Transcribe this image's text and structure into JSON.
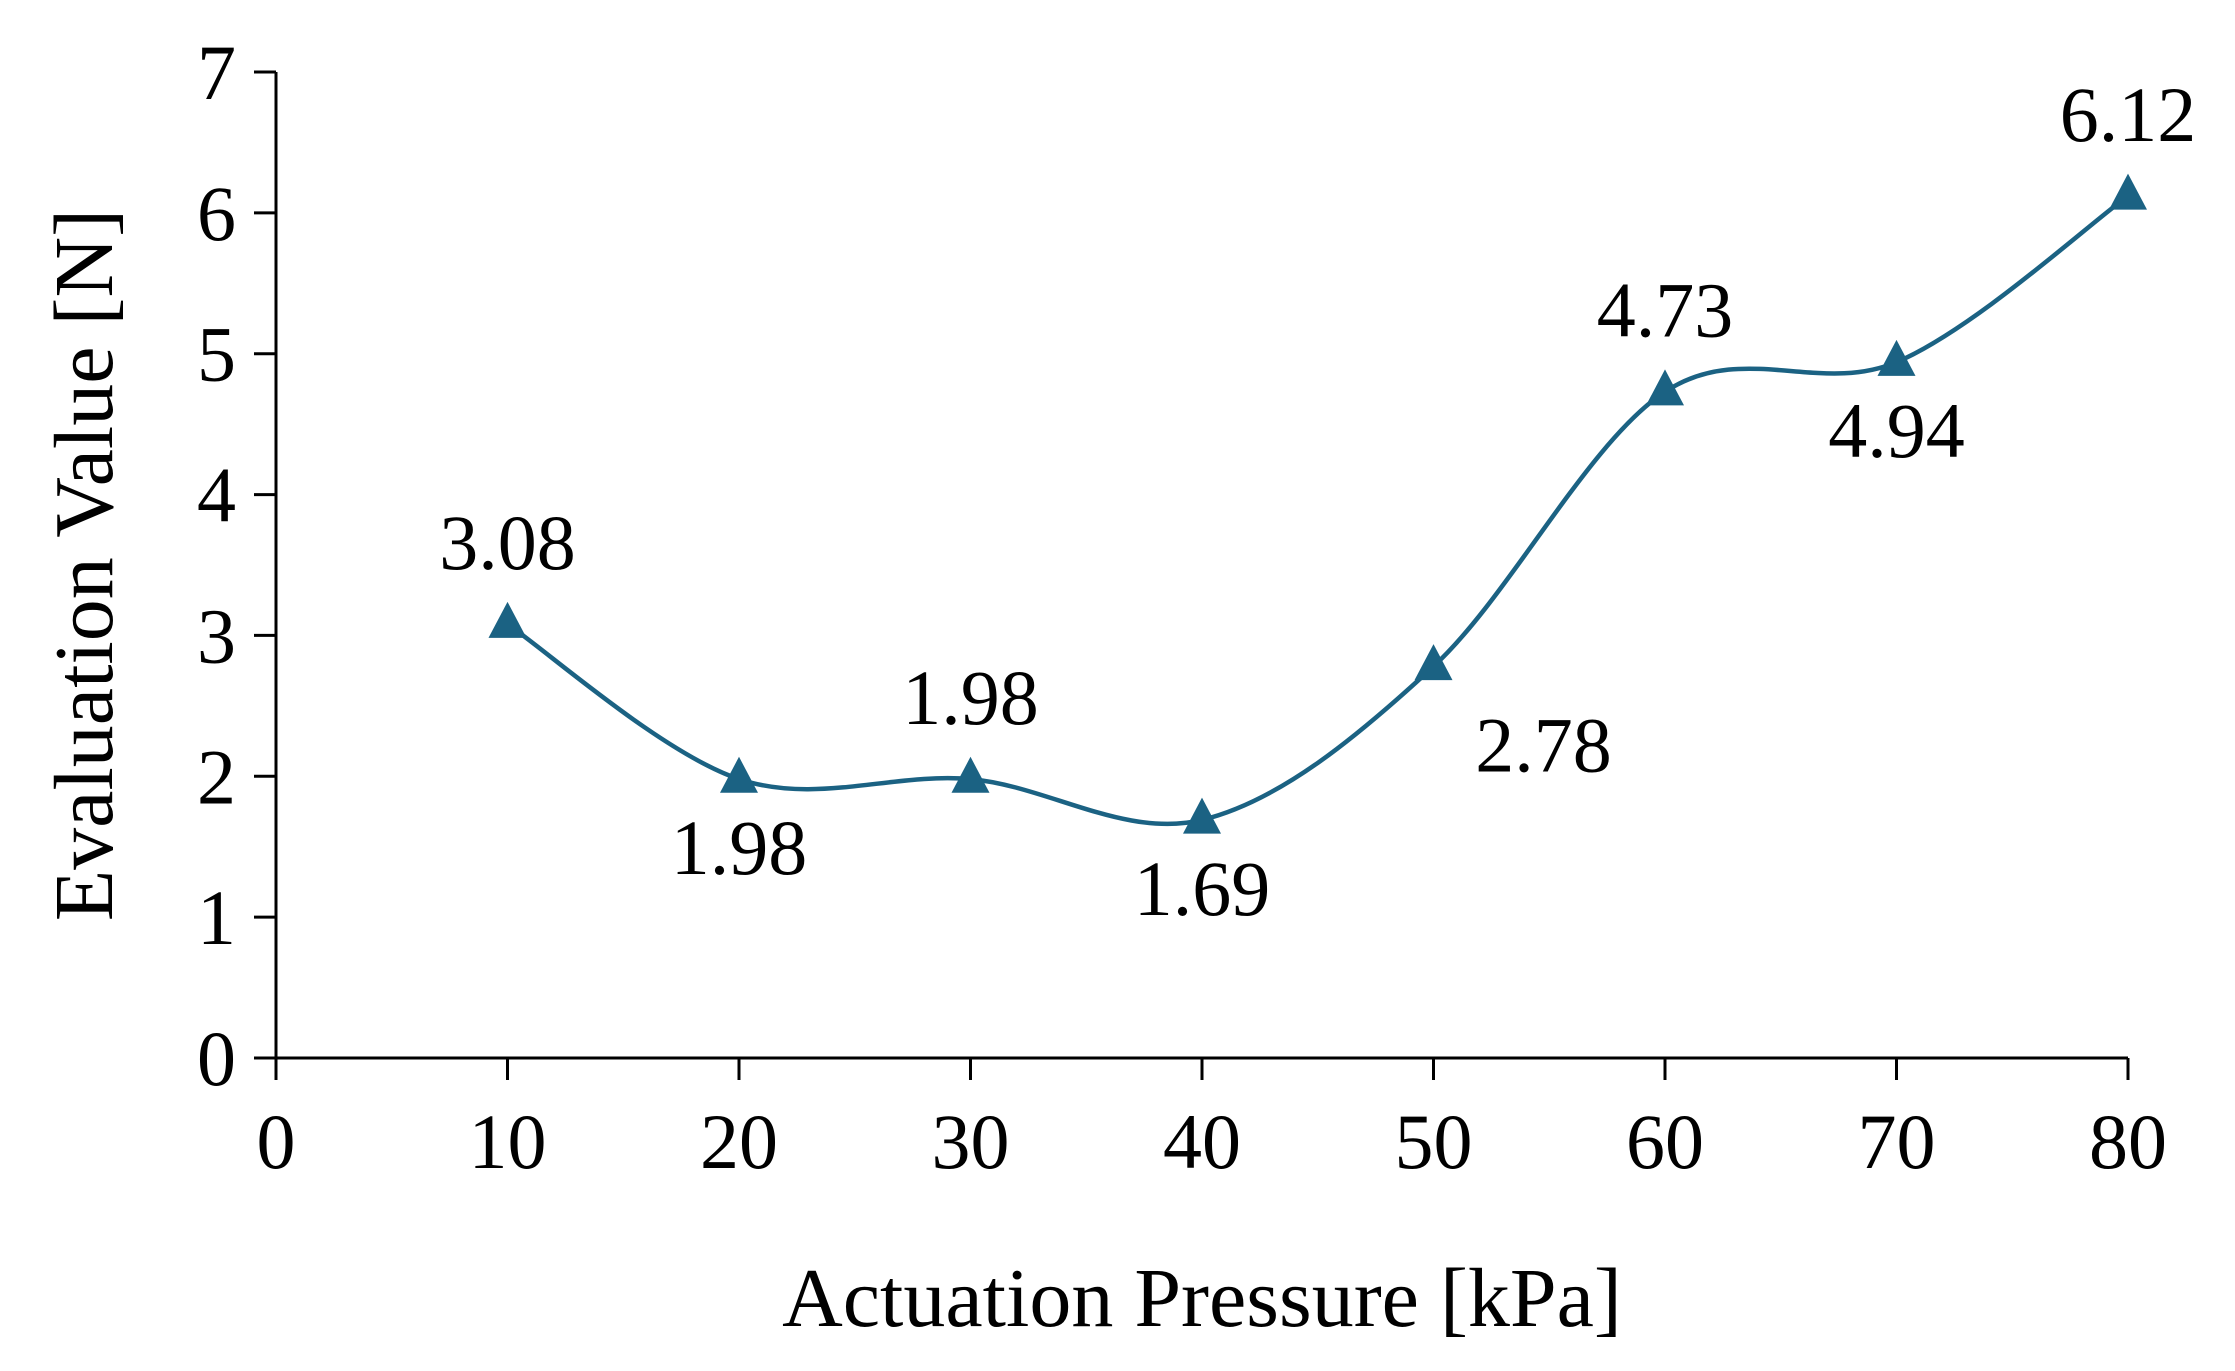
{
  "chart_data": {
    "type": "line",
    "title": "",
    "xlabel": "Actuation Pressure [kPa]",
    "ylabel": "Evaluation Value [N]",
    "xlim": [
      0,
      80
    ],
    "ylim": [
      0,
      7
    ],
    "x_ticks": [
      "0",
      "10",
      "20",
      "30",
      "40",
      "50",
      "60",
      "70",
      "80"
    ],
    "y_ticks": [
      "0",
      "1",
      "2",
      "3",
      "4",
      "5",
      "6",
      "7"
    ],
    "grid": false,
    "legend": "none",
    "smooth": true,
    "marker": "triangle",
    "color": "#1b6283",
    "series": [
      {
        "name": "Evaluation Value",
        "x": [
          10,
          20,
          30,
          40,
          50,
          60,
          70,
          80
        ],
        "values": [
          3.08,
          1.98,
          1.98,
          1.69,
          2.78,
          4.73,
          4.94,
          6.12
        ],
        "labels": [
          "3.08",
          "1.98",
          "1.98",
          "1.69",
          "2.78",
          "4.73",
          "4.94",
          "6.12"
        ],
        "label_positions": [
          "above",
          "below",
          "above",
          "below",
          "below-right",
          "above",
          "below",
          "above"
        ]
      }
    ]
  }
}
